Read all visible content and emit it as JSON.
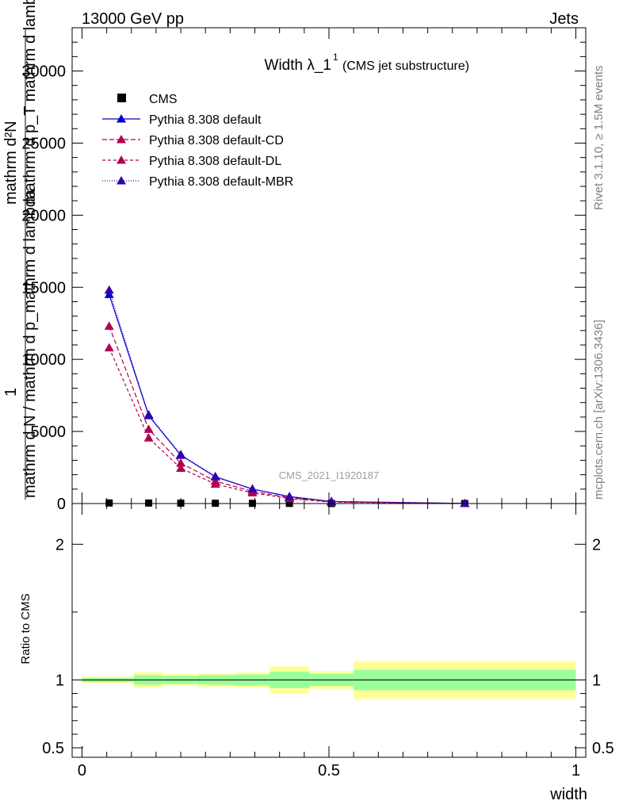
{
  "header": {
    "left": "13000 GeV pp",
    "right": "Jets"
  },
  "side_labels": {
    "rivet": "Rivet 3.1.10, ≥ 1.5M events",
    "mcplots": "mcplots.cern.ch [arXiv:1306.3436]"
  },
  "colors": {
    "cms": "#000000",
    "default": "#0000cc",
    "cd": "#b00050",
    "dl": "#b00050",
    "mbr": "#3300aa",
    "band_inner": "#99ff99",
    "band_outer": "#ffff99"
  },
  "chart_data": [
    {
      "type": "line",
      "title": "Width λ_1",
      "title_sup": "1",
      "title_suffix": "(CMS jet substructure)",
      "ylabel_top": "mathrm d²N",
      "ylabel_top_sub": "mathrm d p_T mathrm d lambda",
      "ylabel_main": "1",
      "ylabel_main_sub": "mathrm d N / mathrm d p_mathrm d lambda",
      "watermark": "CMS_2021_I1920187",
      "xlim": [
        -0.02,
        1.02
      ],
      "ylim": [
        0,
        33000
      ],
      "yticks": [
        0,
        5000,
        10000,
        15000,
        20000,
        25000,
        30000
      ],
      "ytick_labels": [
        "0",
        "5000",
        "10000",
        "15000",
        "20000",
        "25000",
        "30000"
      ],
      "legend_position": "top-left",
      "series": [
        {
          "name": "CMS",
          "key": "cms",
          "marker": "square",
          "x": [
            0.055,
            0.135,
            0.2,
            0.27,
            0.345,
            0.42,
            0.505,
            0.775
          ],
          "y": [
            40,
            35,
            28,
            20,
            14,
            9,
            4,
            1
          ]
        },
        {
          "name": "Pythia 8.308 default",
          "key": "default",
          "marker": "triangle",
          "dash": "",
          "x": [
            0.055,
            0.135,
            0.2,
            0.27,
            0.345,
            0.42,
            0.505,
            0.775
          ],
          "y": [
            14500,
            6100,
            3350,
            1850,
            1000,
            480,
            140,
            5
          ]
        },
        {
          "name": "Pythia 8.308 default-CD",
          "key": "cd",
          "marker": "triangle",
          "dash": "6,3",
          "x": [
            0.055,
            0.135,
            0.2,
            0.27,
            0.345,
            0.42,
            0.505,
            0.775
          ],
          "y": [
            12300,
            5150,
            2800,
            1550,
            850,
            400,
            120,
            4
          ]
        },
        {
          "name": "Pythia 8.308 default-DL",
          "key": "dl",
          "marker": "triangle",
          "dash": "4,3",
          "x": [
            0.055,
            0.135,
            0.2,
            0.27,
            0.345,
            0.42,
            0.505,
            0.775
          ],
          "y": [
            10800,
            4550,
            2450,
            1350,
            740,
            350,
            100,
            3
          ]
        },
        {
          "name": "Pythia 8.308 default-MBR",
          "key": "mbr",
          "marker": "triangle",
          "dash": "1,2",
          "x": [
            0.055,
            0.135,
            0.2,
            0.27,
            0.345,
            0.42,
            0.505,
            0.775
          ],
          "y": [
            14800,
            6150,
            3400,
            1880,
            1020,
            490,
            145,
            5
          ]
        }
      ]
    },
    {
      "type": "area",
      "ylabel": "Ratio to CMS",
      "xlabel": "width",
      "xlim": [
        -0.02,
        1.02
      ],
      "ylim": [
        0.43,
        2.3
      ],
      "yticks": [
        0.5,
        1,
        2
      ],
      "ytick_labels": [
        "0.5",
        "1",
        "2"
      ],
      "xticks": [
        0,
        0.5,
        1
      ],
      "xtick_labels": [
        "0",
        "0.5",
        "1"
      ],
      "bins": [
        {
          "lo": 0.0,
          "hi": 0.105,
          "inner": [
            0.985,
            1.015
          ],
          "outer": [
            0.975,
            1.025
          ]
        },
        {
          "lo": 0.105,
          "hi": 0.165,
          "inner": [
            0.965,
            1.035
          ],
          "outer": [
            0.945,
            1.055
          ]
        },
        {
          "lo": 0.165,
          "hi": 0.235,
          "inner": [
            0.97,
            1.03
          ],
          "outer": [
            0.955,
            1.045
          ]
        },
        {
          "lo": 0.235,
          "hi": 0.31,
          "inner": [
            0.965,
            1.035
          ],
          "outer": [
            0.95,
            1.05
          ]
        },
        {
          "lo": 0.31,
          "hi": 0.38,
          "inner": [
            0.96,
            1.04
          ],
          "outer": [
            0.945,
            1.055
          ]
        },
        {
          "lo": 0.38,
          "hi": 0.46,
          "inner": [
            0.94,
            1.06
          ],
          "outer": [
            0.9,
            1.1
          ]
        },
        {
          "lo": 0.46,
          "hi": 0.55,
          "inner": [
            0.955,
            1.045
          ],
          "outer": [
            0.935,
            1.065
          ]
        },
        {
          "lo": 0.55,
          "hi": 1.0,
          "inner": [
            0.925,
            1.075
          ],
          "outer": [
            0.86,
            1.14
          ]
        }
      ],
      "reference": 1
    }
  ]
}
